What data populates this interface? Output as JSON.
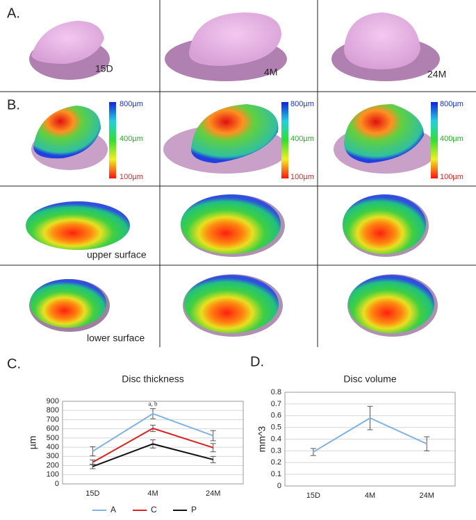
{
  "panel_a": {
    "label": "A.",
    "images": [
      "15D",
      "4M",
      "24M"
    ]
  },
  "panel_b": {
    "label": "B.",
    "scale": [
      "800µm",
      "400µm",
      "100µm"
    ],
    "rows": [
      "upper surface",
      "lower surface"
    ]
  },
  "chart_data": [
    {
      "type": "line",
      "panel": "C.",
      "title": "Disc thickness",
      "y_label": "µm",
      "categories": [
        "15D",
        "4M",
        "24M"
      ],
      "series": [
        {
          "name": "A",
          "color": "#7fb2e5",
          "values": [
            355,
            765,
            525
          ],
          "errors": [
            50,
            55,
            55
          ]
        },
        {
          "name": "C",
          "color": "#e02020",
          "values": [
            235,
            605,
            395
          ],
          "errors": [
            25,
            35,
            45
          ]
        },
        {
          "name": "P",
          "color": "#111111",
          "values": [
            190,
            435,
            265
          ],
          "errors": [
            25,
            45,
            35
          ]
        }
      ],
      "annotation": "a, b",
      "ylim": [
        0,
        900
      ],
      "yticks": [
        0,
        100,
        200,
        300,
        400,
        500,
        600,
        700,
        800,
        900
      ],
      "grid": true,
      "legend": "bottom"
    },
    {
      "type": "line",
      "panel": "D.",
      "title": "Disc volume",
      "y_label": "mm^3",
      "categories": [
        "15D",
        "4M",
        "24M"
      ],
      "series": [
        {
          "color": "#7fb2e5",
          "values": [
            0.29,
            0.58,
            0.36
          ],
          "errors": [
            0.03,
            0.1,
            0.06
          ]
        }
      ],
      "ylim": [
        0,
        0.8
      ],
      "yticks": [
        0,
        0.1,
        0.2,
        0.3,
        0.4,
        0.5,
        0.6,
        0.7,
        0.8
      ],
      "grid": true
    }
  ]
}
